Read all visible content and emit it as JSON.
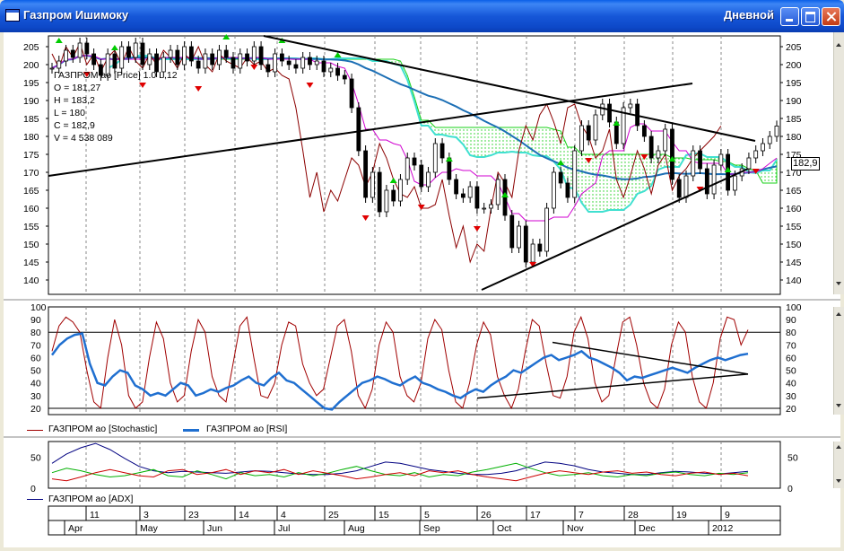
{
  "window": {
    "title": "Газпром Ишимоку",
    "period": "Дневной",
    "icons": {
      "app": "chart-window-icon",
      "minimize": "minimize-icon",
      "maximize": "maximize-icon",
      "close": "close-icon"
    }
  },
  "readout": {
    "line1": "ГАЗПРОМ ао [Price] 1.0 L,12",
    "open": "O = 181,27",
    "high": "H = 183,2",
    "low": "L = 180",
    "close": "C = 182,9",
    "volume": "V = 4 538 089"
  },
  "last_price_label": "182,9",
  "legends": {
    "stochastic": "ГАЗПРОМ ао [Stochastic]",
    "rsi": "ГАЗПРОМ ао [RSI]",
    "adx": "ГАЗПРОМ ао [ADX]"
  },
  "colors": {
    "price_candle": "#000000",
    "stoch": "#a00000",
    "rsi": "#1f6fd0",
    "adx": "#000080",
    "di_plus": "#00b000",
    "di_minus": "#cc0000",
    "kijun": "#1c6fb5",
    "tenkan": "#d000d0",
    "chikou": "#8b0000",
    "senkou": "#40e0d0",
    "cloud": "#00cc00",
    "arrow_up": "#00cc00",
    "arrow_down": "#e00000"
  },
  "date_axis": {
    "day_ticks": [
      "11",
      "3",
      "23",
      "14",
      "4",
      "25",
      "15",
      "5",
      "26",
      "17",
      "7",
      "28",
      "19",
      "9"
    ],
    "months": [
      "Apr",
      "May",
      "Jun",
      "Jul",
      "Aug",
      "Sep",
      "Oct",
      "Nov",
      "Dec",
      "2012"
    ]
  },
  "chart_data": [
    {
      "type": "candlestick",
      "y_ticks": [
        205,
        200,
        195,
        190,
        185,
        180,
        175,
        170,
        165,
        160,
        155,
        150,
        145,
        140
      ],
      "ylim": [
        136,
        208
      ],
      "close_series": [
        199,
        201,
        204,
        202,
        206,
        203,
        200,
        197,
        203,
        199,
        205,
        202,
        206,
        200,
        203,
        198,
        202,
        204,
        200,
        205,
        201,
        199,
        203,
        200,
        204,
        202,
        199,
        203,
        201,
        205,
        200,
        198,
        203,
        201,
        200,
        199,
        202,
        200,
        201,
        198,
        199,
        197,
        196,
        188,
        176,
        163,
        170,
        159,
        165,
        162,
        168,
        174,
        172,
        166,
        170,
        178,
        174,
        168,
        164,
        163,
        166,
        160,
        160,
        161,
        168,
        158,
        149,
        155,
        145,
        150,
        148,
        160,
        170,
        167,
        163,
        176,
        183,
        179,
        186,
        189,
        184,
        178,
        188,
        189,
        183,
        180,
        174,
        176,
        182,
        168,
        163,
        169,
        176,
        171,
        164,
        172,
        175,
        165,
        169,
        171,
        174,
        176,
        178,
        180,
        182.9
      ],
      "stoch": {
        "name": "ГАЗПРОМ ао [Stochastic]",
        "ylim": [
          15,
          100
        ],
        "ticks": [
          100,
          90,
          80,
          70,
          60,
          50,
          40,
          30,
          20
        ],
        "levels": [
          20,
          80
        ],
        "values": [
          65,
          85,
          92,
          88,
          80,
          50,
          25,
          20,
          60,
          90,
          70,
          30,
          20,
          25,
          60,
          88,
          75,
          40,
          25,
          30,
          65,
          90,
          80,
          45,
          30,
          25,
          55,
          85,
          92,
          60,
          30,
          28,
          40,
          70,
          88,
          85,
          55,
          40,
          30,
          35,
          60,
          85,
          90,
          65,
          30,
          20,
          35,
          70,
          88,
          80,
          45,
          30,
          25,
          40,
          75,
          90,
          82,
          50,
          25,
          20,
          40,
          70,
          88,
          78,
          45,
          30,
          20,
          35,
          65,
          90,
          85,
          55,
          30,
          28,
          45,
          80,
          92,
          75,
          40,
          25,
          30,
          60,
          88,
          92,
          70,
          40,
          25,
          20,
          35,
          70,
          88,
          80,
          45,
          25,
          20,
          40,
          75,
          92,
          90,
          70,
          82
        ]
      },
      "rsi": {
        "name": "ГАЗПРОМ ао [RSI]",
        "values": [
          62,
          70,
          75,
          78,
          79,
          55,
          40,
          38,
          45,
          50,
          48,
          38,
          35,
          30,
          32,
          30,
          35,
          40,
          38,
          30,
          32,
          35,
          33,
          36,
          38,
          42,
          45,
          40,
          38,
          44,
          48,
          42,
          40,
          35,
          30,
          25,
          20,
          19,
          25,
          30,
          35,
          40,
          42,
          45,
          43,
          40,
          38,
          42,
          45,
          40,
          38,
          35,
          33,
          30,
          28,
          32,
          35,
          33,
          38,
          42,
          45,
          50,
          48,
          52,
          56,
          60,
          62,
          58,
          60,
          62,
          65,
          60,
          58,
          55,
          52,
          48,
          42,
          45,
          44,
          46,
          48,
          50,
          52,
          50,
          48,
          52,
          55,
          58,
          60,
          58,
          60,
          62,
          63
        ]
      },
      "adx": {
        "name": "ГАЗПРОМ ао [ADX]",
        "ticks": [
          50,
          0
        ],
        "adx_values": [
          40,
          55,
          65,
          72,
          62,
          48,
          35,
          28,
          25,
          27,
          26,
          25,
          24,
          26,
          28,
          27,
          25,
          23,
          22,
          22,
          24,
          28,
          35,
          42,
          40,
          35,
          30,
          27,
          24,
          22,
          22,
          24,
          28,
          35,
          42,
          40,
          36,
          30,
          26,
          24,
          22,
          22,
          25,
          27,
          26,
          24,
          23,
          25,
          27
        ],
        "di_plus": [
          25,
          32,
          28,
          22,
          18,
          20,
          25,
          30,
          20,
          18,
          28,
          22,
          15,
          25,
          20,
          22,
          18,
          25,
          20,
          24,
          30,
          35,
          28,
          22,
          20,
          25,
          18,
          22,
          20,
          26,
          30,
          35,
          40,
          32,
          25,
          20,
          22,
          25,
          20,
          18,
          22,
          20,
          24,
          26,
          22,
          20,
          24,
          22,
          25
        ],
        "di_minus": [
          15,
          12,
          18,
          25,
          30,
          25,
          20,
          18,
          28,
          30,
          22,
          25,
          30,
          22,
          28,
          25,
          30,
          22,
          28,
          24,
          20,
          15,
          18,
          22,
          25,
          20,
          28,
          25,
          28,
          22,
          18,
          15,
          12,
          18,
          24,
          28,
          25,
          22,
          26,
          28,
          24,
          26,
          22,
          20,
          24,
          26,
          22,
          24,
          20
        ]
      }
    }
  ]
}
